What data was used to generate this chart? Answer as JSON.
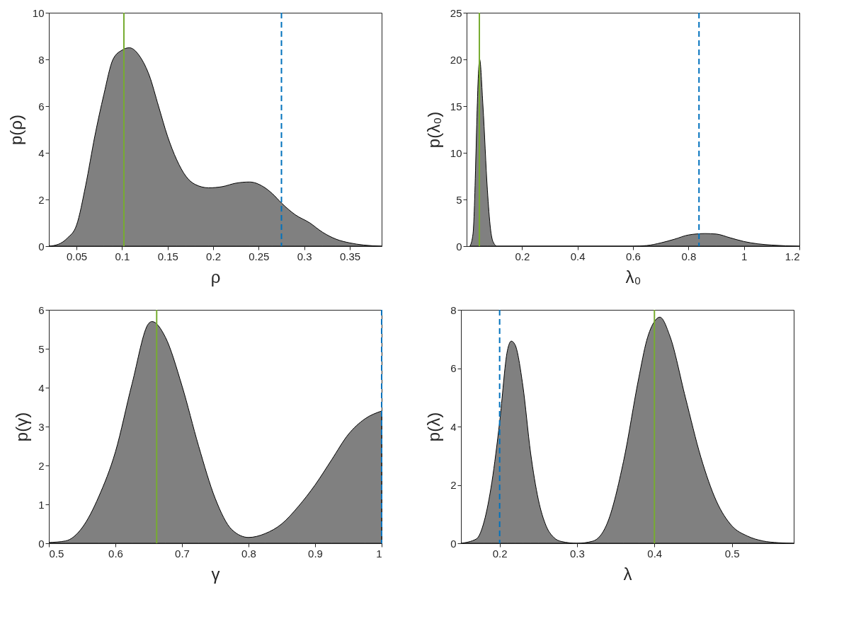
{
  "chart_data": [
    {
      "type": "area",
      "xlabel": "ρ",
      "ylabel": "p(ρ)",
      "xlim": [
        0.0196,
        0.385
      ],
      "ylim": [
        0,
        10
      ],
      "xticks": [
        0.05,
        0.1,
        0.15,
        0.2,
        0.25,
        0.3,
        0.35
      ],
      "yticks": [
        0,
        2,
        4,
        6,
        8,
        10
      ],
      "grid": false,
      "x": [
        0.0196,
        0.03,
        0.04,
        0.05,
        0.06,
        0.07,
        0.08,
        0.09,
        0.1,
        0.108,
        0.12,
        0.13,
        0.14,
        0.15,
        0.16,
        0.17,
        0.18,
        0.195,
        0.21,
        0.225,
        0.24,
        0.255,
        0.265,
        0.275,
        0.29,
        0.306,
        0.32,
        0.335,
        0.35,
        0.365,
        0.385
      ],
      "series": [
        {
          "color": "#808080",
          "values": [
            0,
            0.08,
            0.35,
            0.9,
            2.6,
            4.7,
            6.5,
            8.0,
            8.4,
            8.5,
            8.1,
            7.3,
            6.0,
            4.7,
            3.7,
            3.0,
            2.65,
            2.5,
            2.55,
            2.7,
            2.75,
            2.55,
            2.25,
            1.85,
            1.35,
            1.0,
            0.6,
            0.3,
            0.14,
            0.05,
            0
          ]
        }
      ],
      "ref_lines": [
        {
          "axis": "x",
          "value": 0.102,
          "label": null,
          "color": "#77ac30",
          "line_style": "solid"
        },
        {
          "axis": "x",
          "value": 0.275,
          "label": null,
          "color": "#0072bd",
          "line_style": "dashed"
        }
      ]
    },
    {
      "type": "area",
      "xlabel": "λ₀",
      "ylabel": "p(λ₀)",
      "xlim": [
        0.0,
        1.2
      ],
      "ylim": [
        0,
        25
      ],
      "xticks": [
        0.2,
        0.4,
        0.6,
        0.8,
        1,
        1.2
      ],
      "yticks": [
        0,
        5,
        10,
        15,
        20,
        25
      ],
      "grid": false,
      "x": [
        0.012,
        0.023,
        0.047,
        0.059,
        0.075,
        0.086,
        0.095,
        0.11,
        0.6,
        0.65,
        0.7,
        0.75,
        0.8,
        0.86,
        0.9,
        0.95,
        1.0,
        1.05,
        1.1,
        1.15,
        1.2
      ],
      "series": [
        {
          "color": "#808080",
          "values": [
            0,
            1.3,
            20,
            15,
            6,
            1.9,
            0.5,
            0,
            0,
            0.07,
            0.35,
            0.75,
            1.2,
            1.35,
            1.3,
            0.9,
            0.5,
            0.25,
            0.12,
            0.04,
            0
          ]
        }
      ],
      "ref_lines": [
        {
          "axis": "x",
          "value": 0.046,
          "label": null,
          "color": "#77ac30",
          "line_style": "solid"
        },
        {
          "axis": "x",
          "value": 0.838,
          "label": null,
          "color": "#0072bd",
          "line_style": "dashed"
        }
      ]
    },
    {
      "type": "area",
      "xlabel": "γ",
      "ylabel": "p(γ)",
      "xlim": [
        0.5,
        1.0
      ],
      "ylim": [
        0,
        6
      ],
      "xticks": [
        0.5,
        0.6,
        0.7,
        0.8,
        0.9,
        1
      ],
      "yticks": [
        0,
        1,
        2,
        3,
        4,
        5,
        6
      ],
      "grid": false,
      "x": [
        0.5,
        0.525,
        0.55,
        0.575,
        0.6,
        0.625,
        0.65,
        0.655,
        0.675,
        0.7,
        0.725,
        0.75,
        0.775,
        0.8,
        0.825,
        0.85,
        0.875,
        0.9,
        0.925,
        0.95,
        0.975,
        1.0
      ],
      "series": [
        {
          "color": "#808080",
          "values": [
            0.02,
            0.06,
            0.4,
            1.2,
            2.35,
            4.1,
            5.65,
            5.7,
            5.3,
            4.05,
            2.5,
            1.15,
            0.35,
            0.15,
            0.25,
            0.5,
            0.95,
            1.5,
            2.15,
            2.8,
            3.2,
            3.4
          ]
        }
      ],
      "ref_lines": [
        {
          "axis": "x",
          "value": 0.662,
          "label": null,
          "color": "#77ac30",
          "line_style": "solid"
        },
        {
          "axis": "x",
          "value": 1.0,
          "label": null,
          "color": "#0072bd",
          "line_style": "dashed"
        }
      ]
    },
    {
      "type": "area",
      "xlabel": "λ",
      "ylabel": "p(λ)",
      "xlim": [
        0.15,
        0.58
      ],
      "ylim": [
        0,
        8
      ],
      "xticks": [
        0.2,
        0.3,
        0.4,
        0.5
      ],
      "yticks": [
        0,
        2,
        4,
        6,
        8
      ],
      "grid": false,
      "x": [
        0.15,
        0.17,
        0.18,
        0.19,
        0.2,
        0.21,
        0.215,
        0.22,
        0.23,
        0.24,
        0.25,
        0.26,
        0.27,
        0.28,
        0.3,
        0.32,
        0.34,
        0.36,
        0.38,
        0.39,
        0.4,
        0.407,
        0.42,
        0.44,
        0.46,
        0.48,
        0.5,
        0.52,
        0.54,
        0.56,
        0.58
      ],
      "series": [
        {
          "color": "#808080",
          "values": [
            0,
            0.15,
            0.75,
            2.1,
            4.15,
            6.6,
            6.93,
            6.8,
            5.4,
            3.1,
            1.5,
            0.6,
            0.2,
            0.06,
            0,
            0.07,
            0.75,
            2.8,
            5.7,
            6.95,
            7.6,
            7.75,
            7.1,
            5.0,
            2.95,
            1.45,
            0.6,
            0.25,
            0.08,
            0.02,
            0
          ]
        }
      ],
      "ref_lines": [
        {
          "axis": "x",
          "value": 0.2,
          "label": null,
          "color": "#0072bd",
          "line_style": "dashed"
        },
        {
          "axis": "x",
          "value": 0.4,
          "label": null,
          "color": "#77ac30",
          "line_style": "solid"
        }
      ]
    }
  ]
}
